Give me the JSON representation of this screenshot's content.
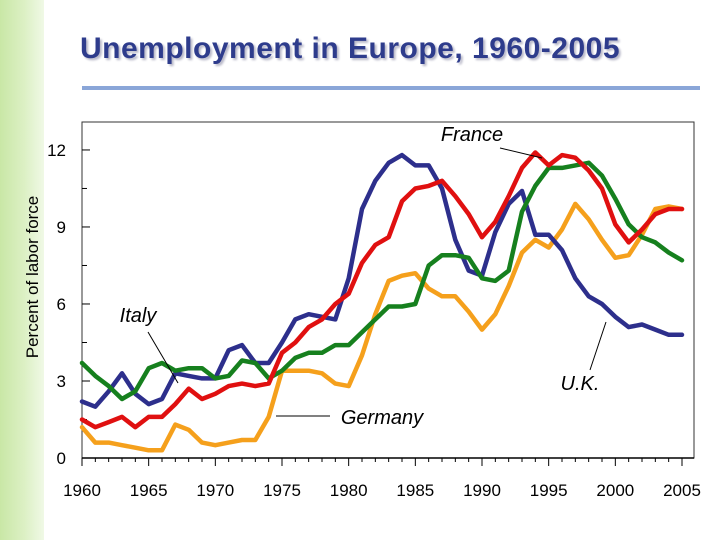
{
  "slide": {
    "title_main": "Unemployment in Europe, ",
    "title_years": "1960-2005"
  },
  "chart_data": {
    "type": "line",
    "title": "Unemployment in Europe, 1960-2005",
    "xlabel": "",
    "ylabel": "Percent of labor force",
    "xlim": [
      1960,
      2005
    ],
    "ylim": [
      0,
      13
    ],
    "x_ticks": [
      1960,
      1965,
      1970,
      1975,
      1980,
      1985,
      1990,
      1995,
      2000,
      2005
    ],
    "y_ticks": [
      0,
      3,
      6,
      9,
      12
    ],
    "grid": false,
    "x": [
      1960,
      1961,
      1962,
      1963,
      1964,
      1965,
      1966,
      1967,
      1968,
      1969,
      1970,
      1971,
      1972,
      1973,
      1974,
      1975,
      1976,
      1977,
      1978,
      1979,
      1980,
      1981,
      1982,
      1983,
      1984,
      1985,
      1986,
      1987,
      1988,
      1989,
      1990,
      1991,
      1992,
      1993,
      1994,
      1995,
      1996,
      1997,
      1998,
      1999,
      2000,
      2001,
      2002,
      2003,
      2004,
      2005
    ],
    "series": [
      {
        "name": "France",
        "color": "#e01010",
        "values": [
          1.5,
          1.2,
          1.4,
          1.6,
          1.2,
          1.6,
          1.6,
          2.1,
          2.7,
          2.3,
          2.5,
          2.8,
          2.9,
          2.8,
          2.9,
          4.1,
          4.5,
          5.1,
          5.4,
          6.0,
          6.4,
          7.6,
          8.3,
          8.6,
          10.0,
          10.5,
          10.6,
          10.8,
          10.2,
          9.5,
          8.6,
          9.2,
          10.2,
          11.3,
          11.9,
          11.4,
          11.8,
          11.7,
          11.2,
          10.5,
          9.1,
          8.4,
          8.9,
          9.5,
          9.7,
          9.7
        ]
      },
      {
        "name": "Italy",
        "color": "#16801e",
        "values": [
          3.7,
          3.2,
          2.8,
          2.3,
          2.6,
          3.5,
          3.7,
          3.4,
          3.5,
          3.5,
          3.1,
          3.2,
          3.8,
          3.7,
          3.1,
          3.4,
          3.9,
          4.1,
          4.1,
          4.4,
          4.4,
          4.9,
          5.4,
          5.9,
          5.9,
          6.0,
          7.5,
          7.9,
          7.9,
          7.8,
          7.0,
          6.9,
          7.3,
          9.6,
          10.6,
          11.3,
          11.3,
          11.4,
          11.5,
          11.0,
          10.1,
          9.1,
          8.6,
          8.4,
          8.0,
          7.7
        ]
      },
      {
        "name": "U.K.",
        "color": "#2d2f8c",
        "values": [
          2.2,
          2.0,
          2.6,
          3.3,
          2.5,
          2.1,
          2.3,
          3.3,
          3.2,
          3.1,
          3.1,
          4.2,
          4.4,
          3.7,
          3.7,
          4.5,
          5.4,
          5.6,
          5.5,
          5.4,
          7.0,
          9.7,
          10.8,
          11.5,
          11.8,
          11.4,
          11.4,
          10.5,
          8.5,
          7.3,
          7.1,
          8.8,
          9.9,
          10.4,
          8.7,
          8.7,
          8.1,
          7.0,
          6.3,
          6.0,
          5.5,
          5.1,
          5.2,
          5.0,
          4.8,
          4.8
        ]
      },
      {
        "name": "Germany",
        "color": "#f5a01c",
        "values": [
          1.2,
          0.6,
          0.6,
          0.5,
          0.4,
          0.3,
          0.3,
          1.3,
          1.1,
          0.6,
          0.5,
          0.6,
          0.7,
          0.7,
          1.6,
          3.4,
          3.4,
          3.4,
          3.3,
          2.9,
          2.8,
          4.0,
          5.6,
          6.9,
          7.1,
          7.2,
          6.6,
          6.3,
          6.3,
          5.7,
          5.0,
          5.6,
          6.7,
          8.0,
          8.5,
          8.2,
          8.9,
          9.9,
          9.3,
          8.5,
          7.8,
          7.9,
          8.7,
          9.7,
          9.8,
          9.7
        ]
      }
    ],
    "annotations": [
      {
        "series": "France",
        "text": "France"
      },
      {
        "series": "Italy",
        "text": "Italy"
      },
      {
        "series": "U.K.",
        "text": "U.K."
      },
      {
        "series": "Germany",
        "text": "Germany"
      }
    ]
  }
}
